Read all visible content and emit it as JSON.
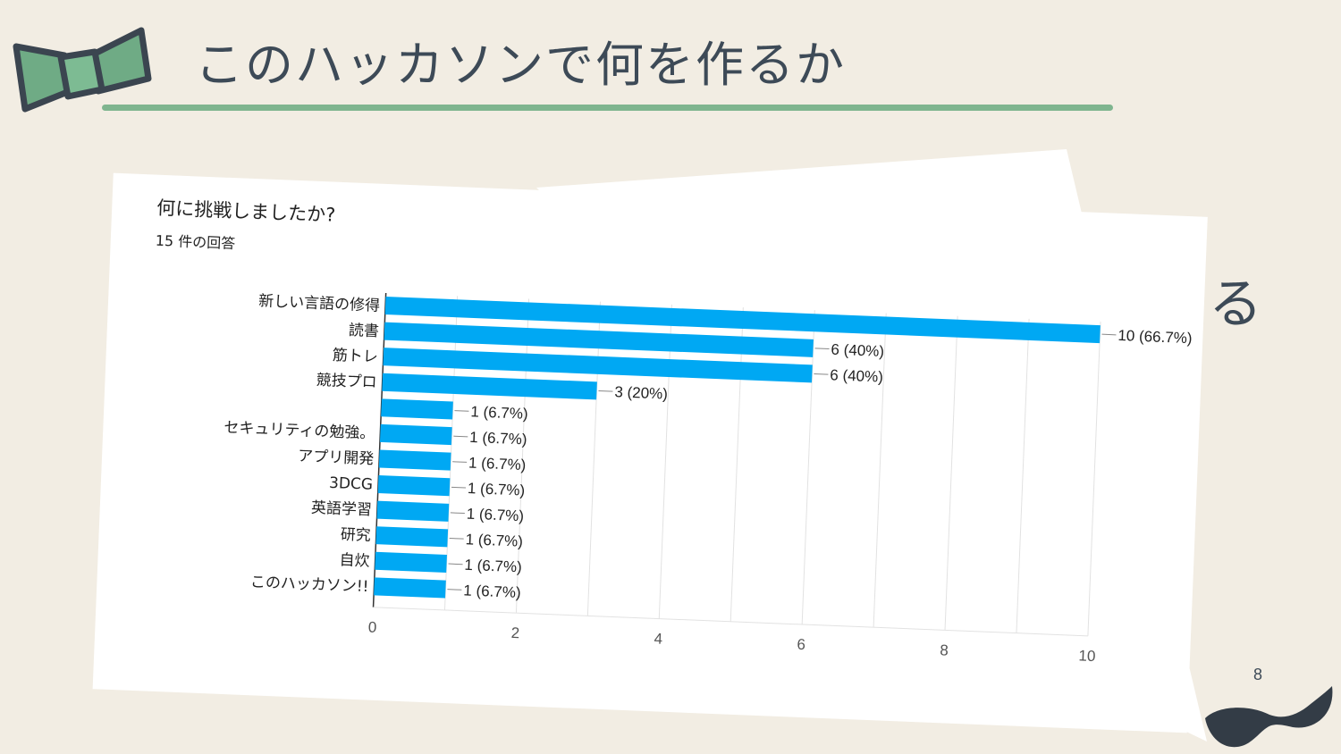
{
  "slide": {
    "title": "このハッカソンで何を作るか",
    "page_number": "8",
    "partial_text_behind_screenshot": "る",
    "accent_color": "#7fb58f",
    "text_color": "#3d4a57",
    "background_color": "#f2ede3"
  },
  "icons": {
    "top_left": "bowtie-icon",
    "bottom_right": "mustache-icon"
  },
  "chart_data": {
    "type": "bar",
    "orientation": "horizontal",
    "title": "何に挑戦しましたか?",
    "subtitle": "15 件の回答",
    "categories": [
      "新しい言語の修得",
      "読書",
      "筋トレ",
      "競技プロ",
      "",
      "セキュリティの勉強。",
      "アプリ開発",
      "3DCG",
      "英語学習",
      "研究",
      "自炊",
      "このハッカソン!!"
    ],
    "values": [
      10,
      6,
      6,
      3,
      1,
      1,
      1,
      1,
      1,
      1,
      1,
      1
    ],
    "value_labels": [
      "10 (66.7%)",
      "6 (40%)",
      "6 (40%)",
      "3 (20%)",
      "1 (6.7%)",
      "1 (6.7%)",
      "1 (6.7%)",
      "1 (6.7%)",
      "1 (6.7%)",
      "1 (6.7%)",
      "1 (6.7%)",
      "1 (6.7%)"
    ],
    "x_ticks": [
      "0",
      "2",
      "4",
      "6",
      "8",
      "10"
    ],
    "xlim": [
      0,
      10
    ],
    "bar_color": "#00a8f3",
    "grid": true,
    "xlabel": "",
    "ylabel": ""
  }
}
